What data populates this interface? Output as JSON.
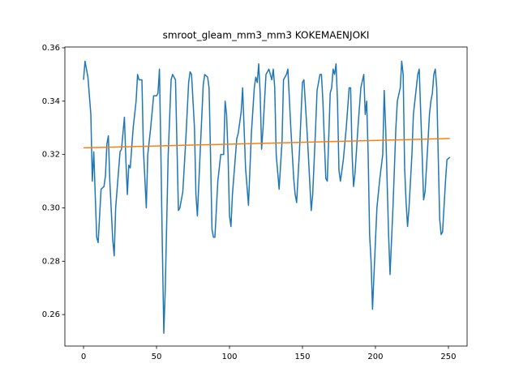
{
  "chart_data": {
    "type": "line",
    "title": "smroot_gleam_mm3_mm3 KOKEMAENJOKI",
    "xlim": [
      -12.8,
      262.8
    ],
    "ylim": [
      0.2482,
      0.3603
    ],
    "xticks": [
      0,
      50,
      100,
      150,
      200,
      250
    ],
    "yticks": [
      0.26,
      0.28,
      {
        "value": 0.3,
        "label": "0.30"
      },
      0.32,
      0.34,
      0.36
    ],
    "series": [
      {
        "color": "#1f77b4",
        "x": [
          0,
          1,
          3,
          5,
          6,
          7,
          8,
          9,
          10,
          12,
          14,
          15,
          16,
          17,
          18,
          20,
          21,
          22,
          25,
          26,
          28,
          29,
          30,
          31,
          32,
          34,
          36,
          37,
          38,
          40,
          41,
          43,
          44,
          46,
          48,
          50,
          51,
          52,
          53,
          54,
          55,
          56,
          58,
          60,
          61,
          63,
          65,
          66,
          68,
          70,
          72,
          73,
          74,
          76,
          77,
          78,
          80,
          82,
          83,
          85,
          86,
          87,
          88,
          89,
          90,
          92,
          94,
          96,
          97,
          98,
          99,
          100,
          101,
          102,
          105,
          106,
          108,
          109,
          110,
          111,
          113,
          115,
          117,
          118,
          119,
          120,
          121,
          122,
          123,
          125,
          127,
          129,
          130,
          131,
          132,
          134,
          136,
          137,
          139,
          140,
          142,
          144,
          145,
          146,
          148,
          150,
          151,
          153,
          154,
          156,
          157,
          159,
          160,
          162,
          163,
          164,
          165,
          166,
          167,
          169,
          170,
          171,
          172,
          173,
          174,
          175,
          176,
          178,
          180,
          182,
          183,
          184,
          185,
          186,
          188,
          190,
          192,
          193,
          194,
          195,
          196,
          197,
          198,
          199,
          201,
          203,
          205,
          206,
          207,
          208,
          209,
          210,
          212,
          214,
          215,
          217,
          218,
          219,
          220,
          221,
          222,
          223,
          225,
          226,
          228,
          229,
          230,
          232,
          233,
          234,
          236,
          237,
          238,
          239,
          240,
          241,
          242,
          243,
          244,
          245,
          246,
          248,
          249,
          251
        ],
        "values": [
          0.348,
          0.355,
          0.349,
          0.335,
          0.31,
          0.321,
          0.305,
          0.289,
          0.287,
          0.307,
          0.308,
          0.312,
          0.324,
          0.327,
          0.31,
          0.288,
          0.282,
          0.3,
          0.321,
          0.322,
          0.334,
          0.318,
          0.305,
          0.316,
          0.315,
          0.33,
          0.34,
          0.35,
          0.348,
          0.348,
          0.322,
          0.3,
          0.32,
          0.33,
          0.342,
          0.342,
          0.343,
          0.352,
          0.32,
          0.285,
          0.253,
          0.27,
          0.32,
          0.348,
          0.35,
          0.348,
          0.299,
          0.3,
          0.306,
          0.325,
          0.347,
          0.351,
          0.35,
          0.33,
          0.305,
          0.297,
          0.322,
          0.346,
          0.35,
          0.349,
          0.345,
          0.32,
          0.292,
          0.289,
          0.289,
          0.31,
          0.32,
          0.32,
          0.34,
          0.335,
          0.32,
          0.297,
          0.293,
          0.305,
          0.326,
          0.328,
          0.336,
          0.345,
          0.33,
          0.315,
          0.301,
          0.328,
          0.345,
          0.349,
          0.347,
          0.354,
          0.343,
          0.322,
          0.33,
          0.35,
          0.352,
          0.348,
          0.352,
          0.345,
          0.32,
          0.307,
          0.325,
          0.348,
          0.35,
          0.352,
          0.33,
          0.311,
          0.305,
          0.302,
          0.322,
          0.347,
          0.348,
          0.33,
          0.32,
          0.299,
          0.305,
          0.33,
          0.344,
          0.35,
          0.35,
          0.34,
          0.325,
          0.311,
          0.31,
          0.343,
          0.345,
          0.352,
          0.35,
          0.354,
          0.34,
          0.314,
          0.31,
          0.318,
          0.33,
          0.345,
          0.345,
          0.32,
          0.308,
          0.313,
          0.33,
          0.345,
          0.35,
          0.335,
          0.34,
          0.32,
          0.29,
          0.28,
          0.262,
          0.275,
          0.3,
          0.311,
          0.32,
          0.344,
          0.33,
          0.31,
          0.29,
          0.275,
          0.3,
          0.33,
          0.34,
          0.345,
          0.355,
          0.35,
          0.315,
          0.302,
          0.293,
          0.3,
          0.32,
          0.335,
          0.345,
          0.35,
          0.352,
          0.32,
          0.303,
          0.306,
          0.325,
          0.335,
          0.34,
          0.343,
          0.35,
          0.352,
          0.345,
          0.32,
          0.296,
          0.29,
          0.291,
          0.31,
          0.318,
          0.319
        ]
      },
      {
        "color": "#ff7f0e",
        "x": [
          0,
          251
        ],
        "values": [
          0.3225,
          0.326
        ]
      }
    ]
  }
}
